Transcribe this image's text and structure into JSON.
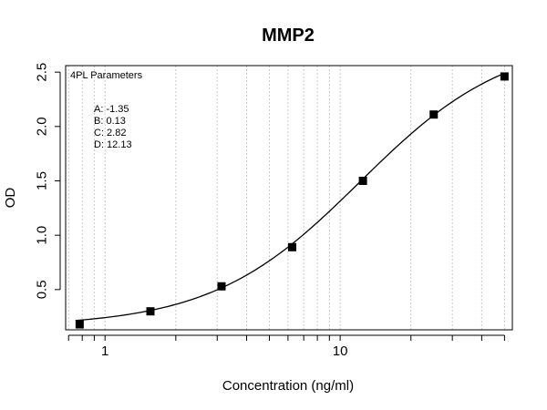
{
  "chart_data": {
    "type": "scatter",
    "title": "MMP2",
    "xlabel": "Concentration (ng/ml)",
    "ylabel": "OD",
    "x_scale": "log",
    "xlim": [
      0.68,
      54
    ],
    "ylim": [
      0.13,
      2.56
    ],
    "x_ticks": [
      1,
      10
    ],
    "x_tick_labels": [
      "1",
      "10"
    ],
    "x_minor_ticks": [
      0.7,
      0.8,
      0.9,
      2,
      3,
      4,
      5,
      6,
      7,
      8,
      9,
      20,
      30,
      40,
      50
    ],
    "y_ticks": [
      0.5,
      1.0,
      1.5,
      2.0,
      2.5
    ],
    "y_tick_labels": [
      "0.5",
      "1.0",
      "1.5",
      "2.0",
      "2.5"
    ],
    "grid": "vertical dotted",
    "series": [
      {
        "marker": "square",
        "color": "#000000",
        "x": [
          0.78,
          1.56,
          3.13,
          6.25,
          12.5,
          25,
          50
        ],
        "y": [
          0.18,
          0.3,
          0.53,
          0.89,
          1.5,
          2.11,
          2.46
        ]
      }
    ],
    "fit": {
      "model": "4PL",
      "A": -1.35,
      "B": 0.13,
      "C": 2.82,
      "D": 12.13
    },
    "legend": {
      "position": "top-left",
      "title": "4PL Parameters",
      "lines": [
        "A: -1.35",
        "B: 0.13",
        "C: 2.82",
        "D: 12.13"
      ]
    }
  }
}
